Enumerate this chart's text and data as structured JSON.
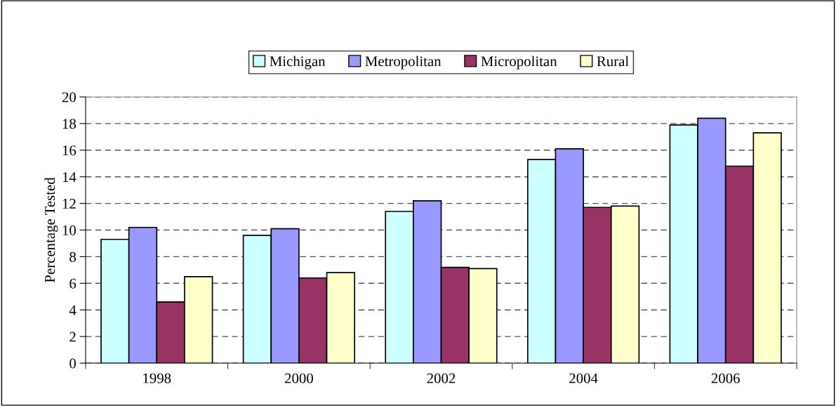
{
  "chart_data": {
    "type": "bar",
    "ylabel": "Percentage Tested",
    "categories": [
      "1998",
      "2000",
      "2002",
      "2004",
      "2006"
    ],
    "series": [
      {
        "name": "Michigan",
        "color": "#ccffff",
        "values": [
          9.3,
          9.6,
          11.4,
          15.3,
          17.9
        ]
      },
      {
        "name": "Metropolitan",
        "color": "#9999ff",
        "values": [
          10.2,
          10.1,
          12.2,
          16.1,
          18.4
        ]
      },
      {
        "name": "Micropolitan",
        "color": "#993366",
        "values": [
          4.6,
          6.4,
          7.2,
          11.7,
          14.8
        ]
      },
      {
        "name": "Rural",
        "color": "#ffffcc",
        "values": [
          6.5,
          6.8,
          7.1,
          11.8,
          17.3
        ]
      }
    ],
    "ylim": [
      0,
      20
    ],
    "yticks": [
      0,
      2,
      4,
      6,
      8,
      10,
      12,
      14,
      16,
      18,
      20
    ],
    "grid": "y",
    "legend": "top"
  }
}
